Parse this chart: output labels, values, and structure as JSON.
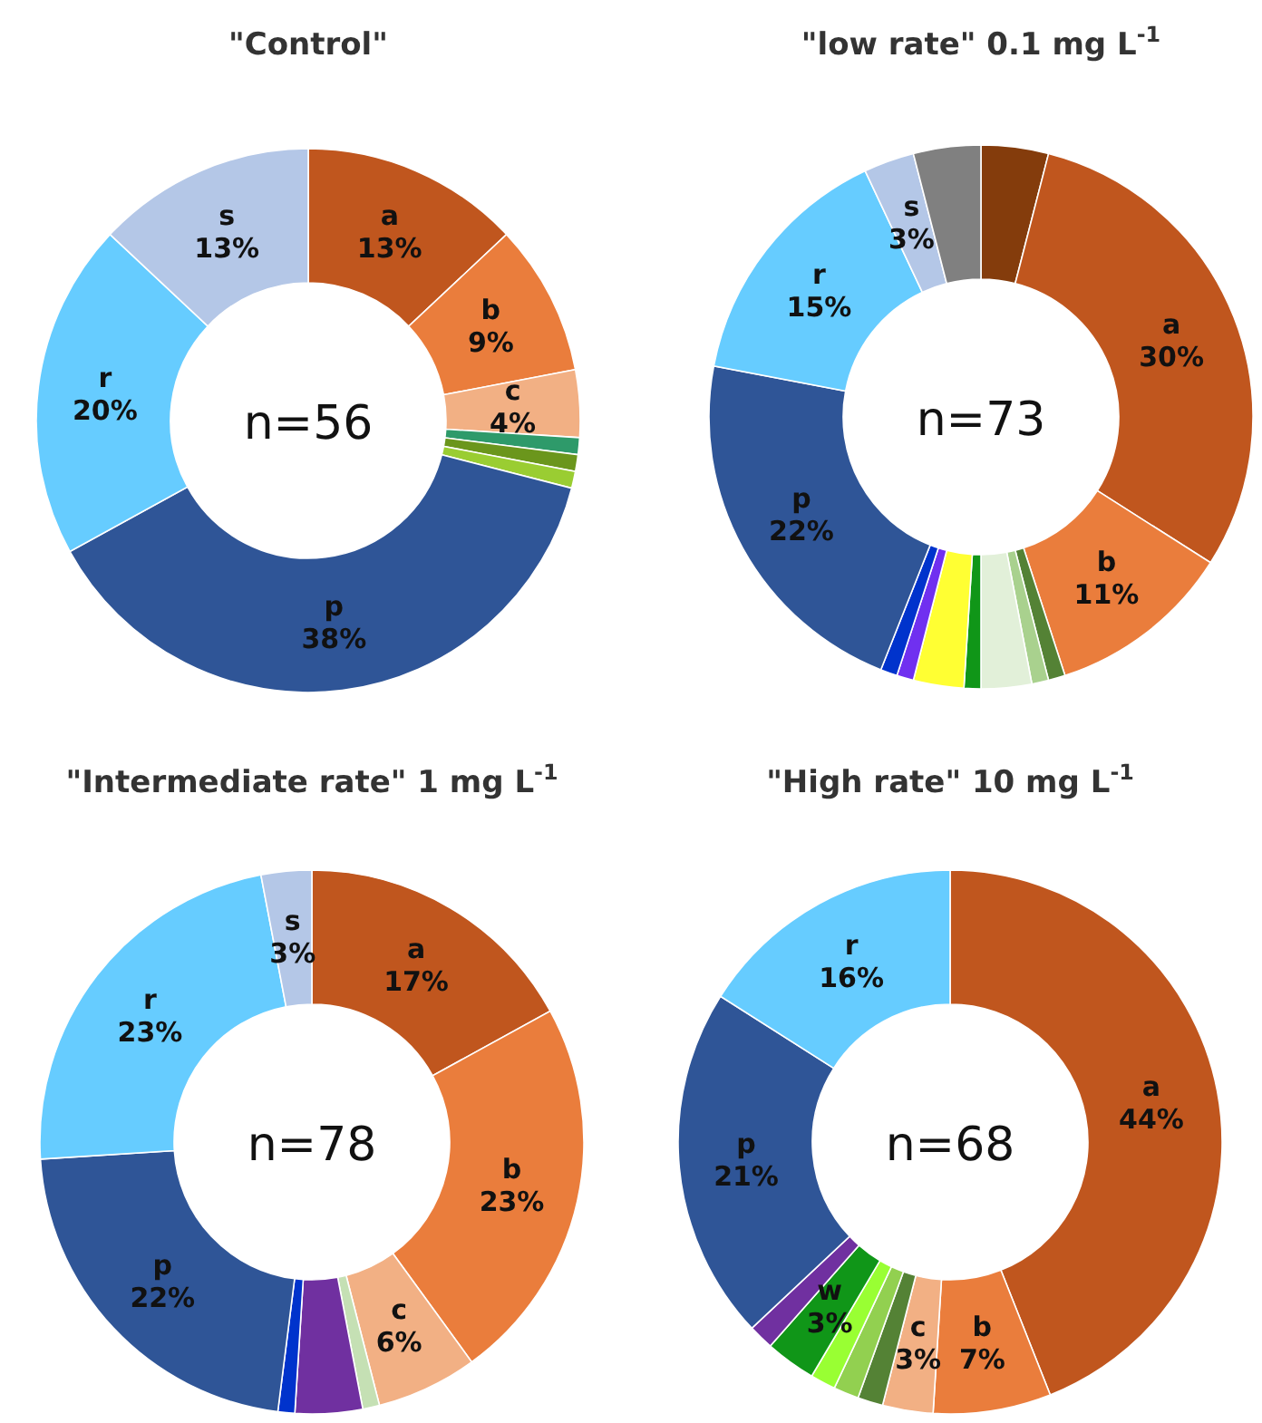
{
  "chart_data": [
    {
      "type": "donut",
      "title": "\"Control\"",
      "annotations": [
        "n=56"
      ],
      "categories": [
        "a",
        "b",
        "c",
        null,
        null,
        null,
        "p",
        "r",
        "s"
      ],
      "values": [
        13,
        9,
        4,
        1,
        1,
        1,
        38,
        20,
        13
      ],
      "value_labels": [
        "13%",
        "9%",
        "4%",
        null,
        null,
        null,
        "38%",
        "20%",
        "13%"
      ],
      "colors": [
        "#c0561e",
        "#ea7d3c",
        "#f2b084",
        "#2e9a6a",
        "#6b961c",
        "#9acd32",
        "#2f5597",
        "#66ccff",
        "#b4c7e7"
      ]
    },
    {
      "type": "donut",
      "title": "\"low rate\" 0.1 mg L$^{-1}$",
      "annotations": [
        "n=73"
      ],
      "categories": [
        null,
        "a",
        "b",
        null,
        null,
        null,
        null,
        null,
        null,
        null,
        "p",
        "r",
        "s",
        null
      ],
      "values": [
        4,
        30,
        11,
        1,
        1,
        3,
        1,
        3,
        1,
        1,
        22,
        15,
        3,
        4
      ],
      "value_labels": [
        null,
        "30%",
        "11%",
        null,
        null,
        null,
        null,
        null,
        null,
        null,
        "22%",
        "15%",
        "3%",
        null
      ],
      "colors": [
        "#843c0c",
        "#c0561e",
        "#ea7d3c",
        "#548235",
        "#a9d18e",
        "#e2f0d9",
        "#109618",
        "#ffff33",
        "#7030f0",
        "#0033cc",
        "#2f5597",
        "#66ccff",
        "#b4c7e7",
        "#808080"
      ]
    },
    {
      "type": "donut",
      "title": "\"Intermediate rate\" 1 mg L$^{-1}$",
      "annotations": [
        "n=78"
      ],
      "categories": [
        "a",
        "b",
        "c",
        null,
        null,
        null,
        "p",
        "r",
        "s"
      ],
      "values": [
        17,
        23,
        6,
        1,
        4,
        1,
        22,
        23,
        3
      ],
      "value_labels": [
        "17%",
        "23%",
        "6%",
        null,
        null,
        null,
        "22%",
        "23%",
        "3%"
      ],
      "colors": [
        "#c0561e",
        "#ea7d3c",
        "#f2b084",
        "#c5e0b4",
        "#7030a0",
        "#0033cc",
        "#2f5597",
        "#66ccff",
        "#b4c7e7"
      ]
    },
    {
      "type": "donut",
      "title": "\"High rate\" 10 mg L$^{-1}$",
      "annotations": [
        "n=68"
      ],
      "categories": [
        "a",
        "b",
        "c",
        null,
        null,
        null,
        "w",
        null,
        "p",
        "r"
      ],
      "values": [
        44,
        7,
        3,
        1.5,
        1.5,
        1.5,
        3,
        1.5,
        21,
        16
      ],
      "value_labels": [
        "44%",
        "7%",
        "3%",
        null,
        null,
        null,
        "3%",
        null,
        "21%",
        "16%"
      ],
      "colors": [
        "#c0561e",
        "#ea7d3c",
        "#f2b084",
        "#548235",
        "#92d050",
        "#99ff33",
        "#109618",
        "#7030a0",
        "#2f5597",
        "#66ccff"
      ]
    }
  ]
}
